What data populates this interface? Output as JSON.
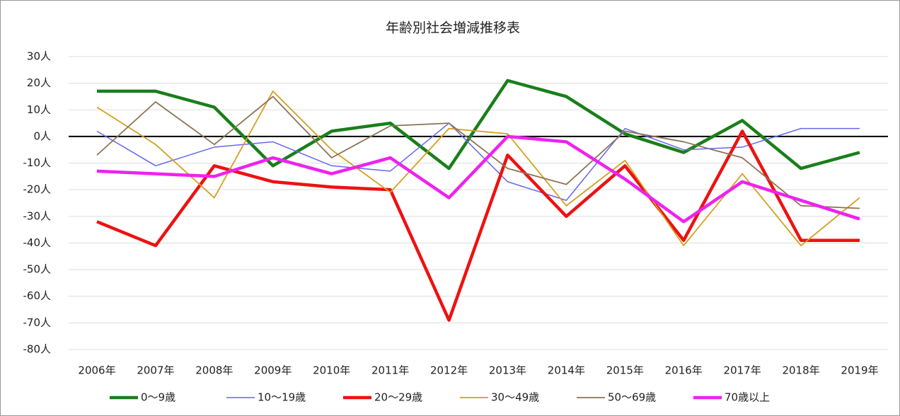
{
  "chart_data": {
    "type": "line",
    "title": "年齢別社会増減推移表",
    "categories": [
      "2006年",
      "2007年",
      "2008年",
      "2009年",
      "2010年",
      "2011年",
      "2012年",
      "2013年",
      "2014年",
      "2015年",
      "2016年",
      "2017年",
      "2018年",
      "2019年"
    ],
    "series": [
      {
        "name": "0～9歳",
        "color": "#1a7f1a",
        "line_width": 4.5,
        "values": [
          17,
          17,
          11,
          -11,
          2,
          5,
          -12,
          21,
          15,
          1,
          -6,
          6,
          -12,
          -6
        ]
      },
      {
        "name": "10～19歳",
        "color": "#6666ee",
        "line_width": 1.5,
        "values": [
          2,
          -11,
          -4,
          -2,
          -11,
          -13,
          5,
          -17,
          -24,
          3,
          -5,
          -4,
          3,
          3
        ]
      },
      {
        "name": "20～29歳",
        "color": "#ee1111",
        "line_width": 4.5,
        "values": [
          -32,
          -41,
          -11,
          -17,
          -19,
          -20,
          -69,
          -7,
          -30,
          -11,
          -39,
          2,
          -39,
          -39
        ]
      },
      {
        "name": "30～49歳",
        "color": "#d4a020",
        "line_width": 1.8,
        "values": [
          11,
          -3,
          -23,
          17,
          -5,
          -21,
          3,
          1,
          -26,
          -9,
          -41,
          -14,
          -41,
          -23
        ]
      },
      {
        "name": "50～69歳",
        "color": "#8b7355",
        "line_width": 1.8,
        "values": [
          -7,
          13,
          -3,
          15,
          -8,
          4,
          5,
          -12,
          -18,
          2,
          -2,
          -8,
          -26,
          -27
        ]
      },
      {
        "name": "70歳以上",
        "color": "#ee22ee",
        "line_width": 4.5,
        "values": [
          -13,
          -14,
          -15,
          -8,
          -14,
          -8,
          -23,
          0,
          -2,
          -16,
          -32,
          -17,
          -24,
          -31
        ]
      }
    ],
    "ylim": [
      -80,
      30
    ],
    "yticks": [
      {
        "value": 30,
        "label": "30人"
      },
      {
        "value": 20,
        "label": "20人"
      },
      {
        "value": 10,
        "label": "10人"
      },
      {
        "value": 0,
        "label": "0人"
      },
      {
        "value": -10,
        "label": "-10人"
      },
      {
        "value": -20,
        "label": "-20人"
      },
      {
        "value": -30,
        "label": "-30人"
      },
      {
        "value": -40,
        "label": "-40人"
      },
      {
        "value": -50,
        "label": "-50人"
      },
      {
        "value": -60,
        "label": "-60人"
      },
      {
        "value": -70,
        "label": "-70人"
      },
      {
        "value": -80,
        "label": "-80人"
      }
    ],
    "grid": true,
    "legend": "bottom"
  }
}
